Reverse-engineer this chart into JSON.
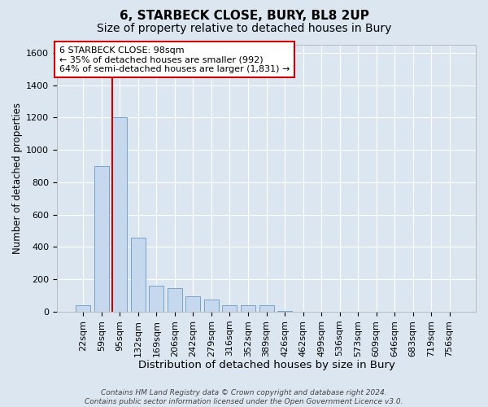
{
  "title1": "6, STARBECK CLOSE, BURY, BL8 2UP",
  "title2": "Size of property relative to detached houses in Bury",
  "xlabel": "Distribution of detached houses by size in Bury",
  "ylabel": "Number of detached properties",
  "footnote": "Contains HM Land Registry data © Crown copyright and database right 2024.\nContains public sector information licensed under the Open Government Licence v3.0.",
  "categories": [
    "22sqm",
    "59sqm",
    "95sqm",
    "132sqm",
    "169sqm",
    "206sqm",
    "242sqm",
    "279sqm",
    "316sqm",
    "352sqm",
    "389sqm",
    "426sqm",
    "462sqm",
    "499sqm",
    "536sqm",
    "573sqm",
    "609sqm",
    "646sqm",
    "683sqm",
    "719sqm",
    "756sqm"
  ],
  "values": [
    40,
    900,
    1200,
    460,
    160,
    145,
    95,
    75,
    40,
    40,
    40,
    5,
    0,
    0,
    0,
    0,
    0,
    0,
    0,
    0,
    0
  ],
  "bar_color": "#c5d8ed",
  "bar_edgecolor": "#6899c4",
  "vline_index": 2,
  "vline_color": "#cc0000",
  "annotation_text": "6 STARBECK CLOSE: 98sqm\n← 35% of detached houses are smaller (992)\n64% of semi-detached houses are larger (1,831) →",
  "annotation_box_facecolor": "#ffffff",
  "annotation_box_edgecolor": "#cc0000",
  "ylim": [
    0,
    1650
  ],
  "yticks": [
    0,
    200,
    400,
    600,
    800,
    1000,
    1200,
    1400,
    1600
  ],
  "bg_color": "#dce6f1",
  "grid_color": "#ffffff",
  "title1_fontsize": 11,
  "title2_fontsize": 10,
  "xlabel_fontsize": 9.5,
  "ylabel_fontsize": 8.5,
  "tick_fontsize": 8,
  "annotation_fontsize": 8,
  "footnote_fontsize": 6.5
}
